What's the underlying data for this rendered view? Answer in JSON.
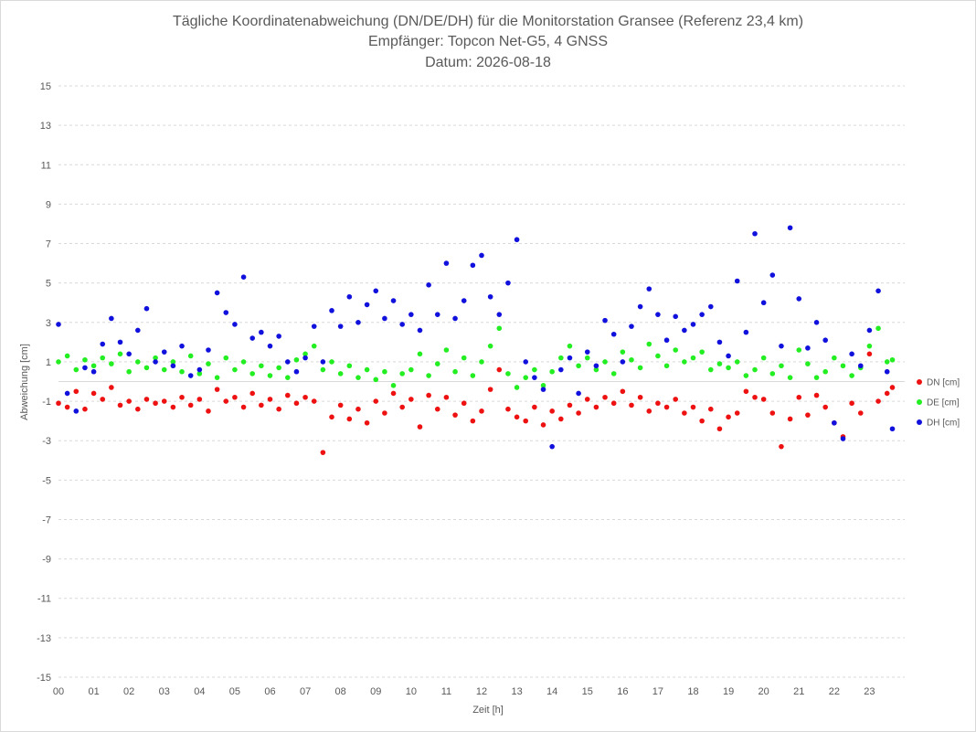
{
  "chart_data": {
    "type": "scatter",
    "title": "Tägliche Koordinatenabweichung (DN/DE/DH) für die Monitorstation Gransee (Referenz 23,4 km)",
    "subtitle_lines": [
      "Empfänger: Topcon Net-G5, 4 GNSS",
      "Datum: 2026-08-18"
    ],
    "xlabel": "Zeit [h]",
    "ylabel": "Abweichung [cm]",
    "xlim": [
      0,
      24
    ],
    "ylim": [
      -15,
      15
    ],
    "x_ticks": [
      0,
      1,
      2,
      3,
      4,
      5,
      6,
      7,
      8,
      9,
      10,
      11,
      12,
      13,
      14,
      15,
      16,
      17,
      18,
      19,
      20,
      21,
      22,
      23
    ],
    "x_tick_labels": [
      "00",
      "01",
      "02",
      "03",
      "04",
      "05",
      "06",
      "07",
      "08",
      "09",
      "10",
      "11",
      "12",
      "13",
      "14",
      "15",
      "16",
      "17",
      "18",
      "19",
      "20",
      "21",
      "22",
      "23"
    ],
    "y_ticks": [
      -15,
      -13,
      -11,
      -9,
      -7,
      -5,
      -3,
      -1,
      1,
      3,
      5,
      7,
      9,
      11,
      13,
      15
    ],
    "grid": "horizontal dashed",
    "legend_position": "right",
    "series": [
      {
        "name": "DN [cm]",
        "color": "#ee1111",
        "x": [
          0.0,
          0.25,
          0.5,
          0.75,
          1.0,
          1.25,
          1.5,
          1.75,
          2.0,
          2.25,
          2.5,
          2.75,
          3.0,
          3.25,
          3.5,
          3.75,
          4.0,
          4.25,
          4.5,
          4.75,
          5.0,
          5.25,
          5.5,
          5.75,
          6.0,
          6.25,
          6.5,
          6.75,
          7.0,
          7.25,
          7.5,
          7.75,
          8.0,
          8.25,
          8.5,
          8.75,
          9.0,
          9.25,
          9.5,
          9.75,
          10.0,
          10.25,
          10.5,
          10.75,
          11.0,
          11.25,
          11.5,
          11.75,
          12.0,
          12.25,
          12.5,
          12.75,
          13.0,
          13.25,
          13.5,
          13.75,
          14.0,
          14.25,
          14.5,
          14.75,
          15.0,
          15.25,
          15.5,
          15.75,
          16.0,
          16.25,
          16.5,
          16.75,
          17.0,
          17.25,
          17.5,
          17.75,
          18.0,
          18.25,
          18.5,
          18.75,
          19.0,
          19.25,
          19.5,
          19.75,
          20.0,
          20.25,
          20.5,
          20.75,
          21.0,
          21.25,
          21.5,
          21.75,
          22.0,
          22.25,
          22.5,
          22.75,
          23.0,
          23.25,
          23.5,
          23.65
        ],
        "y": [
          -1.1,
          -1.3,
          -0.5,
          -1.4,
          -0.6,
          -0.9,
          -0.3,
          -1.2,
          -1.0,
          -1.4,
          -0.9,
          -1.1,
          -1.0,
          -1.3,
          -0.8,
          -1.2,
          -0.9,
          -1.5,
          -0.4,
          -1.0,
          -0.8,
          -1.3,
          -0.6,
          -1.2,
          -0.9,
          -1.4,
          -0.7,
          -1.1,
          -0.8,
          -1.0,
          -3.6,
          -1.8,
          -1.2,
          -1.9,
          -1.4,
          -2.1,
          -1.0,
          -1.6,
          -0.6,
          -1.3,
          -0.9,
          -2.3,
          -0.7,
          -1.4,
          -0.8,
          -1.7,
          -1.1,
          -2.0,
          -1.5,
          -0.4,
          0.6,
          -1.4,
          -1.8,
          -2.0,
          -1.3,
          -2.2,
          -1.5,
          -1.9,
          -1.2,
          -1.6,
          -0.9,
          -1.3,
          -0.8,
          -1.1,
          -0.5,
          -1.2,
          -0.8,
          -1.5,
          -1.1,
          -1.3,
          -0.9,
          -1.6,
          -1.3,
          -2.0,
          -1.4,
          -2.4,
          -1.8,
          -1.6,
          -0.5,
          -0.8,
          -0.9,
          -1.6,
          -3.3,
          -1.9,
          -0.8,
          -1.7,
          -0.7,
          -1.3,
          -2.1,
          -2.8,
          -1.1,
          -1.6,
          1.4,
          -1.0,
          -0.6,
          -0.3
        ]
      },
      {
        "name": "DE [cm]",
        "color": "#22ee22",
        "x": [
          0.0,
          0.25,
          0.5,
          0.75,
          1.0,
          1.25,
          1.5,
          1.75,
          2.0,
          2.25,
          2.5,
          2.75,
          3.0,
          3.25,
          3.5,
          3.75,
          4.0,
          4.25,
          4.5,
          4.75,
          5.0,
          5.25,
          5.5,
          5.75,
          6.0,
          6.25,
          6.5,
          6.75,
          7.0,
          7.25,
          7.5,
          7.75,
          8.0,
          8.25,
          8.5,
          8.75,
          9.0,
          9.25,
          9.5,
          9.75,
          10.0,
          10.25,
          10.5,
          10.75,
          11.0,
          11.25,
          11.5,
          11.75,
          12.0,
          12.25,
          12.5,
          12.75,
          13.0,
          13.25,
          13.5,
          13.75,
          14.0,
          14.25,
          14.5,
          14.75,
          15.0,
          15.25,
          15.5,
          15.75,
          16.0,
          16.25,
          16.5,
          16.75,
          17.0,
          17.25,
          17.5,
          17.75,
          18.0,
          18.25,
          18.5,
          18.75,
          19.0,
          19.25,
          19.5,
          19.75,
          20.0,
          20.25,
          20.5,
          20.75,
          21.0,
          21.25,
          21.5,
          21.75,
          22.0,
          22.25,
          22.5,
          22.75,
          23.0,
          23.25,
          23.5,
          23.65
        ],
        "y": [
          1.0,
          1.3,
          0.6,
          1.1,
          0.8,
          1.2,
          0.9,
          1.4,
          0.5,
          1.0,
          0.7,
          1.2,
          0.6,
          1.0,
          0.5,
          1.3,
          0.4,
          0.9,
          0.2,
          1.2,
          0.6,
          1.0,
          0.4,
          0.8,
          0.3,
          0.7,
          0.2,
          1.1,
          1.4,
          1.8,
          0.6,
          1.0,
          0.4,
          0.8,
          0.2,
          0.6,
          0.1,
          0.5,
          -0.2,
          0.4,
          0.6,
          1.4,
          0.3,
          0.9,
          1.6,
          0.5,
          1.2,
          0.3,
          1.0,
          1.8,
          2.7,
          0.4,
          -0.3,
          0.2,
          0.6,
          -0.2,
          0.5,
          1.2,
          1.8,
          0.8,
          1.2,
          0.6,
          1.0,
          0.4,
          1.5,
          1.1,
          0.7,
          1.9,
          1.3,
          0.8,
          1.6,
          1.0,
          1.2,
          1.5,
          0.6,
          0.9,
          0.7,
          1.0,
          0.3,
          0.6,
          1.2,
          0.4,
          0.8,
          0.2,
          1.6,
          0.9,
          0.2,
          0.5,
          1.2,
          0.8,
          0.3,
          0.7,
          1.8,
          2.7,
          1.0,
          1.1
        ]
      },
      {
        "name": "DH [cm]",
        "color": "#1111dd",
        "x": [
          0.0,
          0.25,
          0.5,
          0.75,
          1.0,
          1.25,
          1.5,
          1.75,
          2.0,
          2.25,
          2.5,
          2.75,
          3.0,
          3.25,
          3.5,
          3.75,
          4.0,
          4.25,
          4.5,
          4.75,
          5.0,
          5.25,
          5.5,
          5.75,
          6.0,
          6.25,
          6.5,
          6.75,
          7.0,
          7.25,
          7.5,
          7.75,
          8.0,
          8.25,
          8.5,
          8.75,
          9.0,
          9.25,
          9.5,
          9.75,
          10.0,
          10.25,
          10.5,
          10.75,
          11.0,
          11.25,
          11.5,
          11.75,
          12.0,
          12.25,
          12.5,
          12.75,
          13.0,
          13.25,
          13.5,
          13.75,
          14.0,
          14.25,
          14.5,
          14.75,
          15.0,
          15.25,
          15.5,
          15.75,
          16.0,
          16.25,
          16.5,
          16.75,
          17.0,
          17.25,
          17.5,
          17.75,
          18.0,
          18.25,
          18.5,
          18.75,
          19.0,
          19.25,
          19.5,
          19.75,
          20.0,
          20.25,
          20.5,
          20.75,
          21.0,
          21.25,
          21.5,
          21.75,
          22.0,
          22.25,
          22.5,
          22.75,
          23.0,
          23.25,
          23.5,
          23.65
        ],
        "y": [
          2.9,
          -0.6,
          -1.5,
          0.7,
          0.5,
          1.9,
          3.2,
          2.0,
          1.4,
          2.6,
          3.7,
          1.0,
          1.5,
          0.8,
          1.8,
          0.3,
          0.6,
          1.6,
          4.5,
          3.5,
          2.9,
          5.3,
          2.2,
          2.5,
          1.8,
          2.3,
          1.0,
          0.5,
          1.2,
          2.8,
          1.0,
          3.6,
          2.8,
          4.3,
          3.0,
          3.9,
          4.6,
          3.2,
          4.1,
          2.9,
          3.4,
          2.6,
          4.9,
          3.4,
          6.0,
          3.2,
          4.1,
          5.9,
          6.4,
          4.3,
          3.4,
          5.0,
          7.2,
          1.0,
          0.2,
          -0.4,
          -3.3,
          0.6,
          1.2,
          -0.6,
          1.5,
          0.8,
          3.1,
          2.4,
          1.0,
          2.8,
          3.8,
          4.7,
          3.4,
          2.1,
          3.3,
          2.6,
          2.9,
          3.4,
          3.8,
          2.0,
          1.3,
          5.1,
          2.5,
          7.5,
          4.0,
          5.4,
          1.8,
          7.8,
          4.2,
          1.7,
          3.0,
          2.1,
          -2.1,
          -2.9,
          1.4,
          0.8,
          2.6,
          4.6,
          0.5,
          -2.4
        ]
      }
    ]
  }
}
